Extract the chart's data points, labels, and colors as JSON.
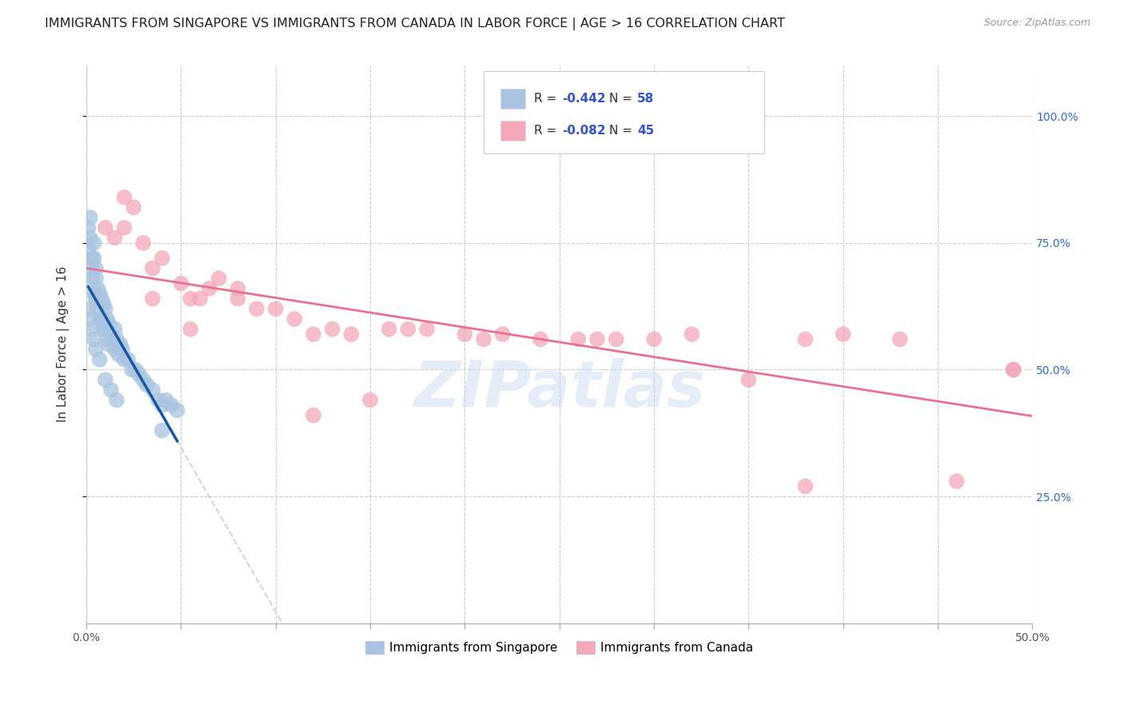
{
  "title": "IMMIGRANTS FROM SINGAPORE VS IMMIGRANTS FROM CANADA IN LABOR FORCE | AGE > 16 CORRELATION CHART",
  "source": "Source: ZipAtlas.com",
  "ylabel": "In Labor Force | Age > 16",
  "xlim": [
    0.0,
    0.5
  ],
  "ylim": [
    0.0,
    1.1
  ],
  "xtick_values": [
    0.0,
    0.05,
    0.1,
    0.15,
    0.2,
    0.25,
    0.3,
    0.35,
    0.4,
    0.45,
    0.5
  ],
  "ytick_values": [
    0.25,
    0.5,
    0.75,
    1.0
  ],
  "right_ytick_labels": [
    "100.0%",
    "75.0%",
    "50.0%",
    "25.0%"
  ],
  "right_ytick_values": [
    1.0,
    0.75,
    0.5,
    0.25
  ],
  "sg_color": "#a8c4e0",
  "ca_color": "#f4a7b9",
  "sg_line_color": "#1a56a0",
  "ca_line_color": "#e87090",
  "sg_R": -0.442,
  "sg_N": 58,
  "ca_R": -0.082,
  "ca_N": 45,
  "sg_scatter_x": [
    0.001,
    0.001,
    0.002,
    0.002,
    0.003,
    0.003,
    0.003,
    0.004,
    0.004,
    0.004,
    0.005,
    0.005,
    0.005,
    0.006,
    0.006,
    0.007,
    0.007,
    0.008,
    0.008,
    0.009,
    0.009,
    0.01,
    0.01,
    0.011,
    0.011,
    0.012,
    0.012,
    0.013,
    0.014,
    0.015,
    0.015,
    0.016,
    0.017,
    0.018,
    0.019,
    0.02,
    0.022,
    0.024,
    0.026,
    0.028,
    0.03,
    0.032,
    0.035,
    0.038,
    0.04,
    0.042,
    0.045,
    0.048,
    0.001,
    0.002,
    0.003,
    0.004,
    0.005,
    0.007,
    0.01,
    0.013,
    0.016,
    0.04
  ],
  "sg_scatter_y": [
    0.78,
    0.74,
    0.8,
    0.76,
    0.72,
    0.7,
    0.68,
    0.75,
    0.72,
    0.65,
    0.7,
    0.68,
    0.64,
    0.66,
    0.62,
    0.65,
    0.6,
    0.64,
    0.6,
    0.63,
    0.58,
    0.62,
    0.58,
    0.6,
    0.56,
    0.59,
    0.55,
    0.57,
    0.56,
    0.54,
    0.58,
    0.56,
    0.53,
    0.55,
    0.54,
    0.52,
    0.52,
    0.5,
    0.5,
    0.49,
    0.48,
    0.47,
    0.46,
    0.44,
    0.43,
    0.44,
    0.43,
    0.42,
    0.62,
    0.6,
    0.58,
    0.56,
    0.54,
    0.52,
    0.48,
    0.46,
    0.44,
    0.38
  ],
  "ca_scatter_x": [
    0.01,
    0.015,
    0.02,
    0.025,
    0.03,
    0.035,
    0.04,
    0.05,
    0.055,
    0.06,
    0.065,
    0.07,
    0.08,
    0.09,
    0.1,
    0.11,
    0.12,
    0.13,
    0.14,
    0.15,
    0.16,
    0.17,
    0.18,
    0.2,
    0.21,
    0.22,
    0.24,
    0.26,
    0.28,
    0.3,
    0.32,
    0.35,
    0.38,
    0.4,
    0.43,
    0.46,
    0.49,
    0.02,
    0.035,
    0.055,
    0.08,
    0.12,
    0.27,
    0.38,
    0.49
  ],
  "ca_scatter_y": [
    0.78,
    0.76,
    0.84,
    0.82,
    0.75,
    0.7,
    0.72,
    0.67,
    0.64,
    0.64,
    0.66,
    0.68,
    0.66,
    0.62,
    0.62,
    0.6,
    0.57,
    0.58,
    0.57,
    0.44,
    0.58,
    0.58,
    0.58,
    0.57,
    0.56,
    0.57,
    0.56,
    0.56,
    0.56,
    0.56,
    0.57,
    0.48,
    0.56,
    0.57,
    0.56,
    0.28,
    0.5,
    0.78,
    0.64,
    0.58,
    0.64,
    0.41,
    0.56,
    0.27,
    0.5
  ],
  "watermark": "ZIPatlas",
  "background_color": "#ffffff",
  "grid_color": "#cccccc",
  "title_fontsize": 11.5,
  "axis_label_fontsize": 11,
  "tick_fontsize": 10,
  "legend_fontsize": 11
}
